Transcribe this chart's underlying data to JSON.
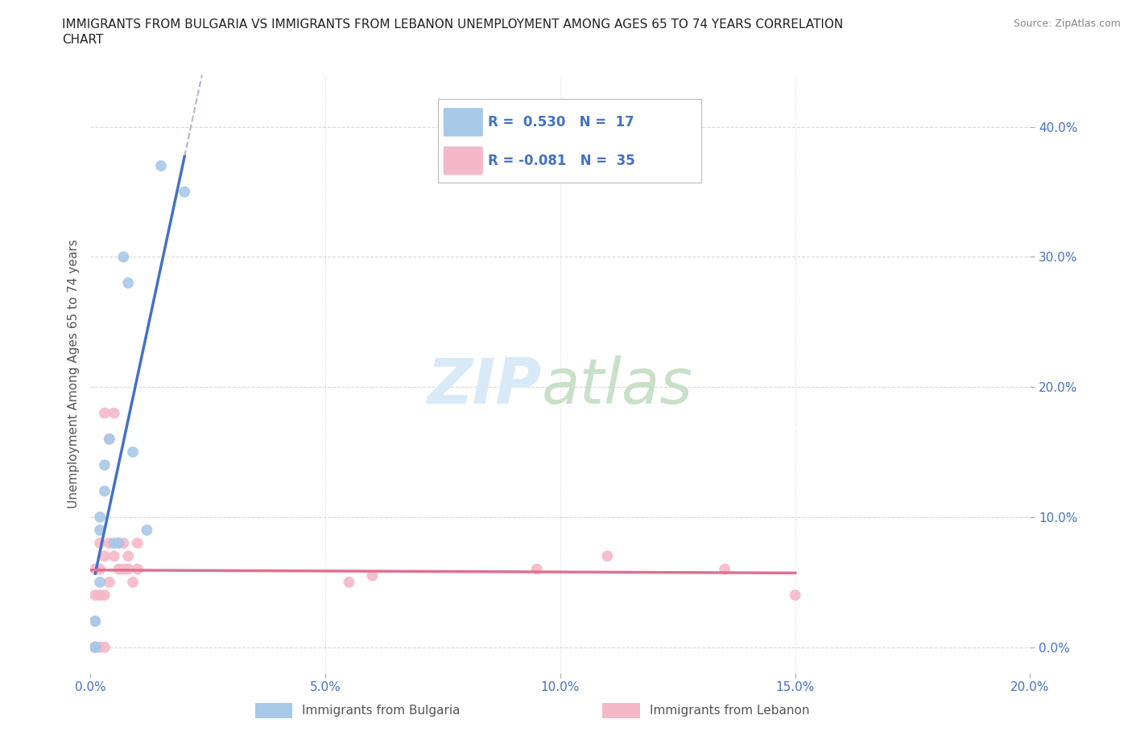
{
  "title_line1": "IMMIGRANTS FROM BULGARIA VS IMMIGRANTS FROM LEBANON UNEMPLOYMENT AMONG AGES 65 TO 74 YEARS CORRELATION",
  "title_line2": "CHART",
  "source": "Source: ZipAtlas.com",
  "ylabel": "Unemployment Among Ages 65 to 74 years",
  "xlim": [
    0.0,
    0.2
  ],
  "ylim": [
    -0.02,
    0.44
  ],
  "xticks": [
    0.0,
    0.05,
    0.1,
    0.15,
    0.2
  ],
  "xtick_labels": [
    "0.0%",
    "5.0%",
    "10.0%",
    "15.0%",
    "20.0%"
  ],
  "yticks": [
    0.0,
    0.1,
    0.2,
    0.3,
    0.4
  ],
  "ytick_labels": [
    "0.0%",
    "10.0%",
    "20.0%",
    "30.0%",
    "40.0%"
  ],
  "legend_r_bulgaria": "R =  0.530",
  "legend_n_bulgaria": "N =  17",
  "legend_r_lebanon": "R = -0.081",
  "legend_n_lebanon": "N =  35",
  "bulgaria_color": "#a8c8e8",
  "lebanon_color": "#f5b8c8",
  "bulgaria_line_color": "#4472c4",
  "lebanon_line_color": "#e07090",
  "dashed_line_color": "#b0b8d0",
  "background_color": "#ffffff",
  "grid_color": "#d8d8d8",
  "tick_color": "#4472c4",
  "label_color": "#555555",
  "title_color": "#222222",
  "source_color": "#888888",
  "watermark_zip_color": "#d8eaf8",
  "watermark_atlas_color": "#c8e0c8",
  "bulgaria_x": [
    0.001,
    0.001,
    0.001,
    0.002,
    0.002,
    0.002,
    0.003,
    0.003,
    0.004,
    0.005,
    0.006,
    0.007,
    0.008,
    0.009,
    0.012,
    0.015,
    0.02
  ],
  "bulgaria_y": [
    0.0,
    0.0,
    0.02,
    0.05,
    0.09,
    0.1,
    0.12,
    0.14,
    0.16,
    0.08,
    0.08,
    0.3,
    0.28,
    0.15,
    0.09,
    0.37,
    0.35
  ],
  "lebanon_x": [
    0.001,
    0.001,
    0.001,
    0.001,
    0.001,
    0.001,
    0.002,
    0.002,
    0.002,
    0.002,
    0.002,
    0.003,
    0.003,
    0.003,
    0.003,
    0.004,
    0.004,
    0.004,
    0.005,
    0.005,
    0.006,
    0.006,
    0.007,
    0.007,
    0.008,
    0.008,
    0.009,
    0.01,
    0.01,
    0.055,
    0.06,
    0.095,
    0.11,
    0.135,
    0.15
  ],
  "lebanon_y": [
    0.0,
    0.0,
    0.0,
    0.02,
    0.04,
    0.06,
    0.0,
    0.0,
    0.04,
    0.06,
    0.08,
    0.0,
    0.04,
    0.07,
    0.18,
    0.05,
    0.08,
    0.16,
    0.07,
    0.18,
    0.06,
    0.08,
    0.06,
    0.08,
    0.06,
    0.07,
    0.05,
    0.06,
    0.08,
    0.05,
    0.055,
    0.06,
    0.07,
    0.06,
    0.04
  ]
}
